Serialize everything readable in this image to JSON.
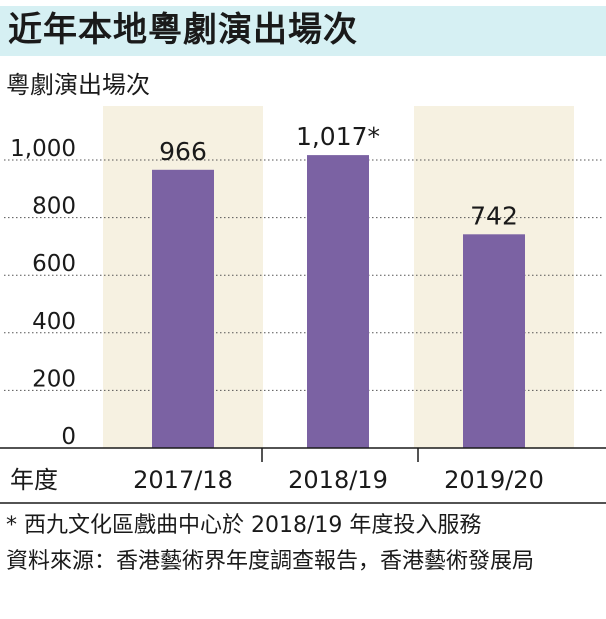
{
  "header": {
    "title": "近年本地粵劇演出場次"
  },
  "chart_data": {
    "type": "bar",
    "ylabel": "粵劇演出場次",
    "xlabel": "年度",
    "categories": [
      "2017/18",
      "2018/19",
      "2019/20"
    ],
    "values": [
      966,
      1017,
      742
    ],
    "value_labels": [
      "966",
      "1,017*",
      "742"
    ],
    "ylim": [
      0,
      1000
    ],
    "yticks": [
      0,
      200,
      400,
      600,
      800,
      1000
    ],
    "ytick_labels": [
      "0",
      "200",
      "400",
      "600",
      "800",
      "1,000"
    ],
    "grid": true,
    "colors": {
      "bar": "#7b62a3",
      "band": "#f6f1e1",
      "title_band": "#d6f0f3",
      "grid": "#555555"
    }
  },
  "notes": {
    "footnote": "* 西九文化區戲曲中心於 2018/19 年度投入服務",
    "source_label": "資料來源：",
    "source_text": "香港藝術界年度調查報告，香港藝術發展局"
  }
}
